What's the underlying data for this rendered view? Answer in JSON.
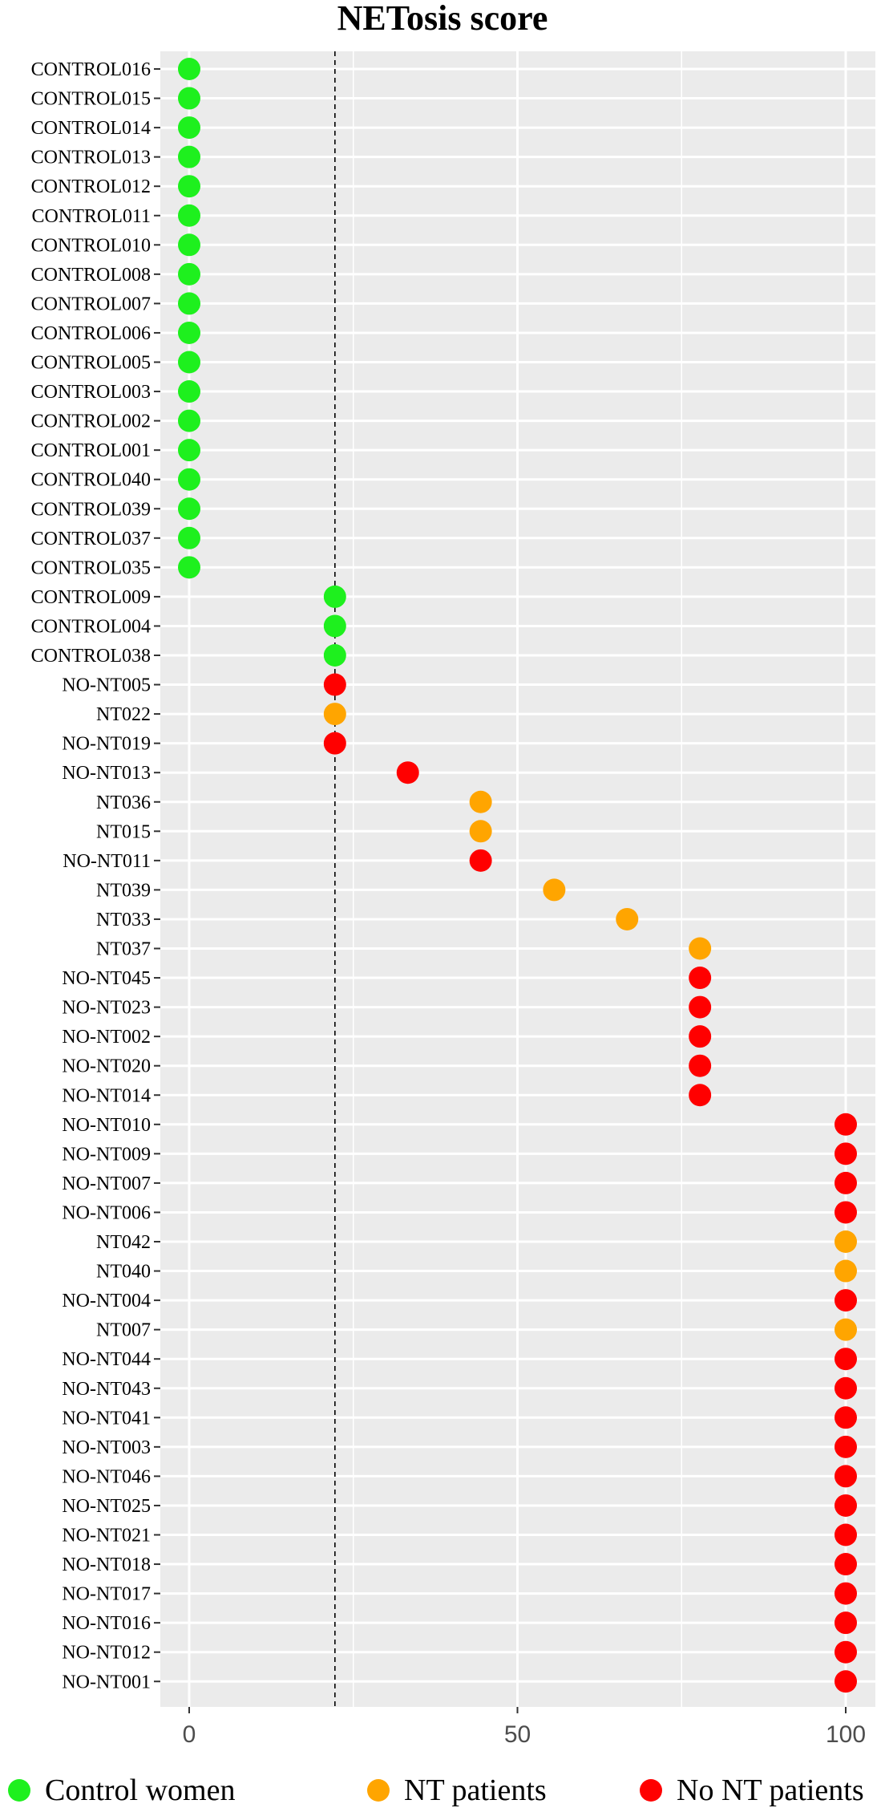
{
  "chart_data": {
    "type": "scatter",
    "title": "NETosis score",
    "xlabel": "",
    "ylabel": "",
    "xlim": [
      -3,
      103
    ],
    "xticks": [
      0,
      50,
      100
    ],
    "reference_line_x": 22.2,
    "grid": true,
    "legend_position": "bottom",
    "colors": {
      "Control women": "#1ef01e",
      "NT patients": "#ffa500",
      "No NT patients": "#ff0000"
    },
    "background": "#ebebeb",
    "legend": [
      "Control women",
      "NT patients",
      "No NT patients"
    ],
    "points": [
      {
        "label": "CONTROL016",
        "x": 0,
        "group": "Control women"
      },
      {
        "label": "CONTROL015",
        "x": 0,
        "group": "Control women"
      },
      {
        "label": "CONTROL014",
        "x": 0,
        "group": "Control women"
      },
      {
        "label": "CONTROL013",
        "x": 0,
        "group": "Control women"
      },
      {
        "label": "CONTROL012",
        "x": 0,
        "group": "Control women"
      },
      {
        "label": "CONTROL011",
        "x": 0,
        "group": "Control women"
      },
      {
        "label": "CONTROL010",
        "x": 0,
        "group": "Control women"
      },
      {
        "label": "CONTROL008",
        "x": 0,
        "group": "Control women"
      },
      {
        "label": "CONTROL007",
        "x": 0,
        "group": "Control women"
      },
      {
        "label": "CONTROL006",
        "x": 0,
        "group": "Control women"
      },
      {
        "label": "CONTROL005",
        "x": 0,
        "group": "Control women"
      },
      {
        "label": "CONTROL003",
        "x": 0,
        "group": "Control women"
      },
      {
        "label": "CONTROL002",
        "x": 0,
        "group": "Control women"
      },
      {
        "label": "CONTROL001",
        "x": 0,
        "group": "Control women"
      },
      {
        "label": "CONTROL040",
        "x": 0,
        "group": "Control women"
      },
      {
        "label": "CONTROL039",
        "x": 0,
        "group": "Control women"
      },
      {
        "label": "CONTROL037",
        "x": 0,
        "group": "Control women"
      },
      {
        "label": "CONTROL035",
        "x": 0,
        "group": "Control women"
      },
      {
        "label": "CONTROL009",
        "x": 22.2,
        "group": "Control women"
      },
      {
        "label": "CONTROL004",
        "x": 22.2,
        "group": "Control women"
      },
      {
        "label": "CONTROL038",
        "x": 22.2,
        "group": "Control women"
      },
      {
        "label": "NO-NT005",
        "x": 22.2,
        "group": "No NT patients"
      },
      {
        "label": "NT022",
        "x": 22.2,
        "group": "NT patients"
      },
      {
        "label": "NO-NT019",
        "x": 22.2,
        "group": "No NT patients"
      },
      {
        "label": "NO-NT013",
        "x": 33.3,
        "group": "No NT patients"
      },
      {
        "label": "NT036",
        "x": 44.4,
        "group": "NT patients"
      },
      {
        "label": "NT015",
        "x": 44.4,
        "group": "NT patients"
      },
      {
        "label": "NO-NT011",
        "x": 44.4,
        "group": "No NT patients"
      },
      {
        "label": "NT039",
        "x": 55.6,
        "group": "NT patients"
      },
      {
        "label": "NT033",
        "x": 66.7,
        "group": "NT patients"
      },
      {
        "label": "NT037",
        "x": 77.8,
        "group": "NT patients"
      },
      {
        "label": "NO-NT045",
        "x": 77.8,
        "group": "No NT patients"
      },
      {
        "label": "NO-NT023",
        "x": 77.8,
        "group": "No NT patients"
      },
      {
        "label": "NO-NT002",
        "x": 77.8,
        "group": "No NT patients"
      },
      {
        "label": "NO-NT020",
        "x": 77.8,
        "group": "No NT patients"
      },
      {
        "label": "NO-NT014",
        "x": 77.8,
        "group": "No NT patients"
      },
      {
        "label": "NO-NT010",
        "x": 100,
        "group": "No NT patients"
      },
      {
        "label": "NO-NT009",
        "x": 100,
        "group": "No NT patients"
      },
      {
        "label": "NO-NT007",
        "x": 100,
        "group": "No NT patients"
      },
      {
        "label": "NO-NT006",
        "x": 100,
        "group": "No NT patients"
      },
      {
        "label": "NT042",
        "x": 100,
        "group": "NT patients"
      },
      {
        "label": "NT040",
        "x": 100,
        "group": "NT patients"
      },
      {
        "label": "NO-NT004",
        "x": 100,
        "group": "No NT patients"
      },
      {
        "label": "NT007",
        "x": 100,
        "group": "NT patients"
      },
      {
        "label": "NO-NT044",
        "x": 100,
        "group": "No NT patients"
      },
      {
        "label": "NO-NT043",
        "x": 100,
        "group": "No NT patients"
      },
      {
        "label": "NO-NT041",
        "x": 100,
        "group": "No NT patients"
      },
      {
        "label": "NO-NT003",
        "x": 100,
        "group": "No NT patients"
      },
      {
        "label": "NO-NT046",
        "x": 100,
        "group": "No NT patients"
      },
      {
        "label": "NO-NT025",
        "x": 100,
        "group": "No NT patients"
      },
      {
        "label": "NO-NT021",
        "x": 100,
        "group": "No NT patients"
      },
      {
        "label": "NO-NT018",
        "x": 100,
        "group": "No NT patients"
      },
      {
        "label": "NO-NT017",
        "x": 100,
        "group": "No NT patients"
      },
      {
        "label": "NO-NT016",
        "x": 100,
        "group": "No NT patients"
      },
      {
        "label": "NO-NT012",
        "x": 100,
        "group": "No NT patients"
      },
      {
        "label": "NO-NT001",
        "x": 100,
        "group": "No NT patients"
      }
    ]
  }
}
